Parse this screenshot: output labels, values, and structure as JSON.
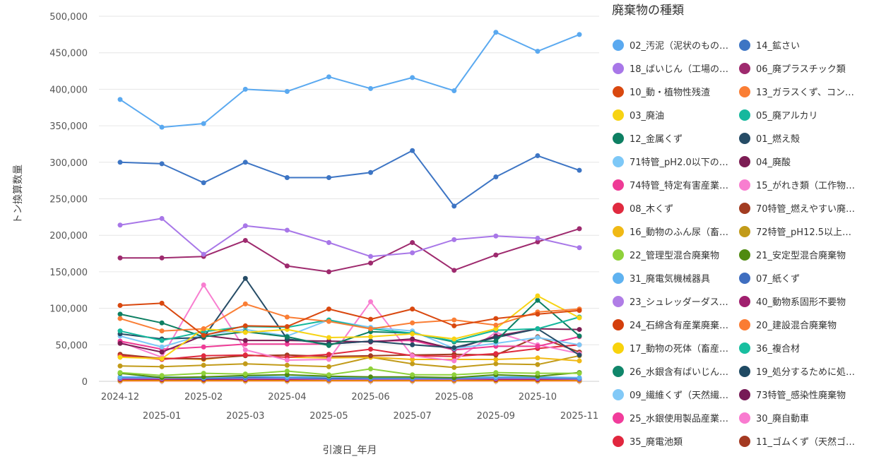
{
  "chart_data": {
    "type": "line",
    "xlabel": "引渡日_年月",
    "ylabel": "トン換算数量",
    "ylim": [
      0,
      500000
    ],
    "y_ticks": [
      0,
      50000,
      100000,
      150000,
      200000,
      250000,
      300000,
      350000,
      400000,
      450000,
      500000
    ],
    "y_tick_labels": [
      "0",
      "50,000",
      "100,000",
      "150,000",
      "200,000",
      "250,000",
      "300,000",
      "350,000",
      "400,000",
      "450,000",
      "500,000"
    ],
    "x": [
      "2024-12",
      "2025-01",
      "2025-02",
      "2025-03",
      "2025-04",
      "2025-05",
      "2025-06",
      "2025-07",
      "2025-08",
      "2025-09",
      "2025-10",
      "2025-11"
    ],
    "legend_title": "廃棄物の種類",
    "grid": true,
    "series": [
      {
        "name": "02_汚泥（泥状のもの…",
        "color": "#5aa9f0",
        "values": [
          386000,
          348000,
          353000,
          400000,
          397000,
          417000,
          401000,
          416000,
          398000,
          478000,
          452000,
          475000
        ]
      },
      {
        "name": "14_鉱さい",
        "color": "#3d75c4",
        "values": [
          300000,
          298000,
          272000,
          300000,
          279000,
          279000,
          286000,
          316000,
          240000,
          280000,
          309000,
          289000
        ]
      },
      {
        "name": "18_ばいじん（工場の…",
        "color": "#a877e8",
        "values": [
          214000,
          223000,
          174000,
          213000,
          207000,
          190000,
          171000,
          176000,
          194000,
          199000,
          196000,
          183000
        ]
      },
      {
        "name": "06_廃プラスチック類",
        "color": "#9e2a6e",
        "values": [
          169000,
          169000,
          171000,
          193000,
          158000,
          150000,
          162000,
          190000,
          152000,
          173000,
          191000,
          209000
        ]
      },
      {
        "name": "10_動・植物性残渣",
        "color": "#d9480f",
        "values": [
          104000,
          107000,
          63000,
          76000,
          75000,
          99000,
          85000,
          99000,
          76000,
          86000,
          92000,
          97000
        ]
      },
      {
        "name": "13_ガラスくず、コン…",
        "color": "#fa7e35",
        "values": [
          86000,
          69000,
          72000,
          106000,
          88000,
          82000,
          72000,
          80000,
          84000,
          77000,
          95000,
          99000
        ]
      },
      {
        "name": "03_廃油",
        "color": "#f7d313",
        "values": [
          33000,
          31000,
          72000,
          67000,
          71000,
          60000,
          61000,
          65000,
          58000,
          72000,
          117000,
          87000
        ]
      },
      {
        "name": "05_廃アルカリ",
        "color": "#16b89d",
        "values": [
          69000,
          56000,
          68000,
          75000,
          74000,
          84000,
          72000,
          66000,
          55000,
          70000,
          72000,
          88000
        ]
      },
      {
        "name": "12_金属くず",
        "color": "#0d7f62",
        "values": [
          92000,
          80000,
          61000,
          68000,
          61000,
          49000,
          68000,
          66000,
          54000,
          55000,
          111000,
          62000
        ]
      },
      {
        "name": "01_燃え殻",
        "color": "#264c66",
        "values": [
          65000,
          58000,
          60000,
          141000,
          58000,
          51000,
          55000,
          50000,
          46000,
          60000,
          72000,
          36000
        ]
      },
      {
        "name": "71特管_pH2.0以下の…",
        "color": "#7dc8f7",
        "values": [
          62000,
          47000,
          64000,
          71000,
          62000,
          84000,
          74000,
          69000,
          45000,
          52000,
          60000,
          50000
        ]
      },
      {
        "name": "04_廃酸",
        "color": "#7c1d54",
        "values": [
          52000,
          40000,
          63000,
          56000,
          56000,
          55000,
          54000,
          58000,
          44000,
          62000,
          72000,
          71000
        ]
      },
      {
        "name": "74特管_特定有害産業…",
        "color": "#ee3b96",
        "values": [
          55000,
          44000,
          47000,
          51000,
          51000,
          51000,
          55000,
          56000,
          43000,
          48000,
          48000,
          61000
        ]
      },
      {
        "name": "15_がれき類（工作物…",
        "color": "#f87ed0",
        "values": [
          54000,
          33000,
          132000,
          43000,
          29000,
          30000,
          109000,
          35000,
          28000,
          67000,
          50000,
          38000
        ]
      },
      {
        "name": "08_木くず",
        "color": "#e02a3f",
        "values": [
          35000,
          30000,
          35000,
          36000,
          33000,
          37000,
          44000,
          35000,
          34000,
          38000,
          45000,
          50000
        ]
      },
      {
        "name": "70特管_燃えやすい廃…",
        "color": "#a23c21",
        "values": [
          37000,
          31000,
          31000,
          35000,
          36000,
          34000,
          35000,
          36000,
          37000,
          36000,
          61000,
          40000
        ]
      },
      {
        "name": "16_動物のふん尿（畜…",
        "color": "#f0b915",
        "values": [
          33000,
          32000,
          30000,
          36000,
          33000,
          32000,
          33000,
          30000,
          30000,
          30000,
          32000,
          28000
        ]
      },
      {
        "name": "72特管_pH12.5以上…",
        "color": "#c29b19",
        "values": [
          21000,
          20000,
          22000,
          24000,
          22000,
          20000,
          33000,
          24000,
          19000,
          24000,
          23000,
          35000
        ]
      },
      {
        "name": "22_管理型混合廃棄物",
        "color": "#8fd13a",
        "values": [
          12000,
          8000,
          11000,
          10000,
          14000,
          9000,
          17000,
          9000,
          9000,
          12000,
          11000,
          11000
        ]
      },
      {
        "name": "21_安定型混合廃棄物",
        "color": "#4f8a10",
        "values": [
          11000,
          5000,
          6000,
          8000,
          9000,
          7000,
          6000,
          6000,
          5000,
          9000,
          7000,
          12000
        ]
      },
      {
        "name": "31_廃電気機械器具",
        "color": "#5fb2f0",
        "values": [
          6000,
          6000,
          5000,
          7000,
          6000,
          6000,
          5000,
          5000,
          5000,
          6000,
          6000,
          5000
        ]
      },
      {
        "name": "07_紙くず",
        "color": "#3f6ec0",
        "values": [
          5000,
          5000,
          4000,
          5000,
          5000,
          4000,
          4000,
          4000,
          4000,
          5000,
          5000,
          4000
        ]
      },
      {
        "name": "23_シュレッダーダス…",
        "color": "#b07de6",
        "values": [
          4000,
          4000,
          4000,
          4000,
          4000,
          3000,
          3000,
          3000,
          3000,
          4000,
          4000,
          3000
        ]
      },
      {
        "name": "40_動物系固形不要物",
        "color": "#a01f6e",
        "values": [
          3000,
          3000,
          3000,
          3000,
          3000,
          3000,
          3000,
          3000,
          3000,
          3000,
          3000,
          3000
        ]
      },
      {
        "name": "24_石綿含有産業廃棄…",
        "color": "#d43f0c",
        "values": [
          2000,
          2000,
          2000,
          2000,
          2000,
          2000,
          2000,
          2000,
          2000,
          2000,
          2000,
          2000
        ]
      },
      {
        "name": "20_建設混合廃棄物",
        "color": "#fb7c33",
        "values": [
          2000,
          2000,
          2000,
          2000,
          2000,
          2000,
          2000,
          2000,
          2000,
          2000,
          2000,
          2000
        ]
      },
      {
        "name": "17_動物の死体（畜産…",
        "color": "#f8d30c",
        "values": [
          1000,
          1000,
          1000,
          1000,
          1000,
          1000,
          1000,
          1000,
          1000,
          1000,
          1000,
          1000
        ]
      },
      {
        "name": "36_複合材",
        "color": "#18bfa0",
        "values": [
          1000,
          1000,
          1000,
          1000,
          1000,
          1000,
          1000,
          1000,
          1000,
          1000,
          1000,
          1000
        ]
      },
      {
        "name": "26_水銀含有ばいじん…",
        "color": "#10866a",
        "values": [
          1000,
          1000,
          1000,
          1000,
          1000,
          1000,
          1000,
          1000,
          1000,
          1000,
          1000,
          1000
        ]
      },
      {
        "name": "19_処分するために処…",
        "color": "#1f4a63",
        "values": [
          1000,
          1000,
          1000,
          1000,
          1000,
          1000,
          1000,
          1000,
          1000,
          1000,
          1000,
          1000
        ]
      },
      {
        "name": "09_繊維くず（天然繊…",
        "color": "#82c9f7",
        "values": [
          1000,
          1000,
          1000,
          1000,
          1000,
          1000,
          1000,
          1000,
          1000,
          1000,
          1000,
          1000
        ]
      },
      {
        "name": "73特管_感染性廃棄物",
        "color": "#761a57",
        "values": [
          1000,
          1000,
          1000,
          1000,
          1000,
          1000,
          1000,
          1000,
          1000,
          1000,
          1000,
          1000
        ]
      },
      {
        "name": "25_水銀使用製品産業…",
        "color": "#f13c9b",
        "values": [
          500,
          500,
          500,
          500,
          500,
          500,
          500,
          500,
          500,
          500,
          500,
          500
        ]
      },
      {
        "name": "30_廃自動車",
        "color": "#f97bd0",
        "values": [
          500,
          500,
          500,
          500,
          500,
          500,
          500,
          500,
          500,
          500,
          500,
          500
        ]
      },
      {
        "name": "35_廃電池類",
        "color": "#e1263e",
        "values": [
          500,
          500,
          500,
          500,
          500,
          500,
          500,
          500,
          500,
          500,
          500,
          500
        ]
      },
      {
        "name": "11_ゴムくず（天然ゴ…",
        "color": "#a43a22",
        "values": [
          500,
          500,
          500,
          500,
          500,
          500,
          500,
          500,
          500,
          500,
          500,
          500
        ]
      }
    ]
  }
}
